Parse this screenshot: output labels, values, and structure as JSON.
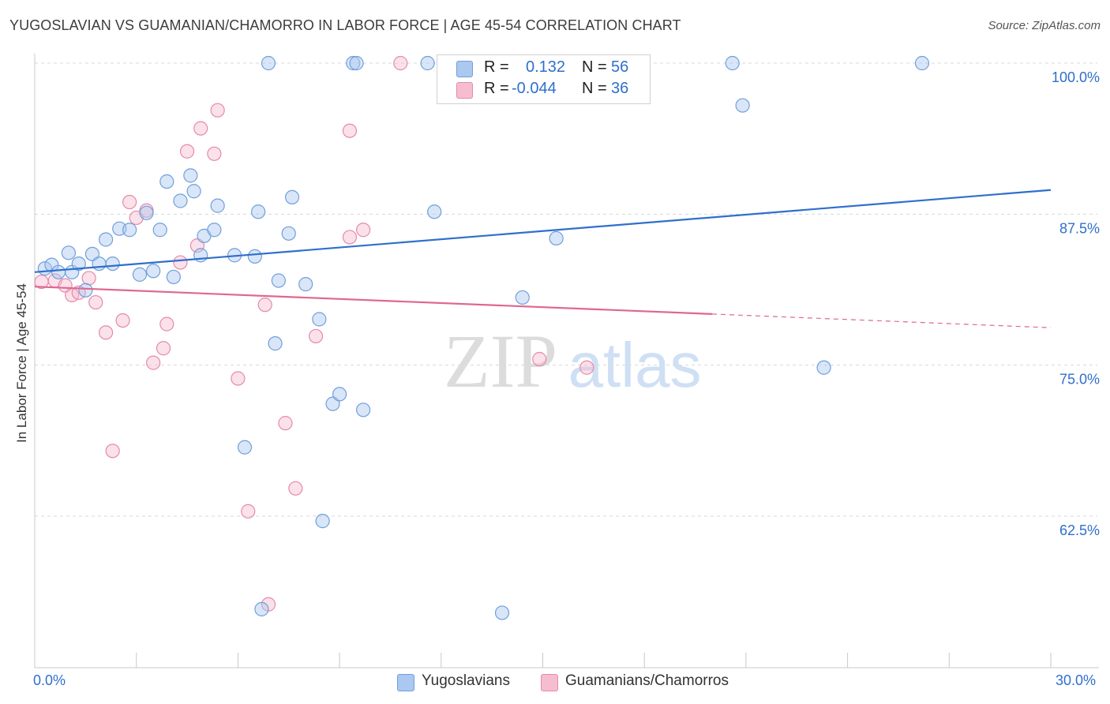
{
  "title": "YUGOSLAVIAN VS GUAMANIAN/CHAMORRO IN LABOR FORCE | AGE 45-54 CORRELATION CHART",
  "source": "Source: ZipAtlas.com",
  "watermark": {
    "zip": "ZIP",
    "atlas": "atlas"
  },
  "legend": {
    "rows": [
      {
        "r_label": "R =",
        "r_value": "0.132",
        "n_label": "N =",
        "n_value": "56"
      },
      {
        "r_label": "R =",
        "r_value": "-0.044",
        "n_label": "N =",
        "n_value": "36"
      }
    ]
  },
  "bottom_legend": {
    "series1": "Yugoslavians",
    "series2": "Guamanians/Chamorros"
  },
  "colors": {
    "blue_fill": "#aac8f0",
    "blue_stroke": "#6f9fdb",
    "blue_line": "#2f6fcc",
    "pink_fill": "#f6bdd0",
    "pink_stroke": "#e58aa8",
    "pink_line": "#e0678f",
    "axis_label": "#2f6fcc",
    "grid": "#d8d8d8"
  },
  "chart_data": {
    "type": "scatter",
    "xlabel": "",
    "ylabel": "In Labor Force | Age 45-54",
    "xlim": [
      0,
      30
    ],
    "ylim": [
      51.5,
      102
    ],
    "x_tick_labels": [
      "0.0%",
      "30.0%"
    ],
    "y_ticks": [
      100,
      87.5,
      75,
      62.5
    ],
    "y_tick_labels": [
      "100.0%",
      "87.5%",
      "75.0%",
      "62.5%"
    ],
    "grid": "horizontal dashed",
    "legend_position": "top-center",
    "series": [
      {
        "name": "Yugoslavians",
        "color": "#6f9fdb",
        "points": [
          [
            0.3,
            83.0
          ],
          [
            0.5,
            83.3
          ],
          [
            0.7,
            82.7
          ],
          [
            1.0,
            84.3
          ],
          [
            1.1,
            82.7
          ],
          [
            1.3,
            83.4
          ],
          [
            1.5,
            81.2
          ],
          [
            1.7,
            84.2
          ],
          [
            1.9,
            83.4
          ],
          [
            2.1,
            85.4
          ],
          [
            2.3,
            83.4
          ],
          [
            2.5,
            86.3
          ],
          [
            2.8,
            86.2
          ],
          [
            3.1,
            82.5
          ],
          [
            3.3,
            87.6
          ],
          [
            3.5,
            82.8
          ],
          [
            3.7,
            86.2
          ],
          [
            3.9,
            90.2
          ],
          [
            4.1,
            82.3
          ],
          [
            4.3,
            88.6
          ],
          [
            4.6,
            90.7
          ],
          [
            4.7,
            89.4
          ],
          [
            4.9,
            84.1
          ],
          [
            5.0,
            85.7
          ],
          [
            5.3,
            86.2
          ],
          [
            5.4,
            88.2
          ],
          [
            5.9,
            84.1
          ],
          [
            6.2,
            68.2
          ],
          [
            6.5,
            84.0
          ],
          [
            6.6,
            87.7
          ],
          [
            6.7,
            54.8
          ],
          [
            6.9,
            100.0
          ],
          [
            7.1,
            76.8
          ],
          [
            7.2,
            82.0
          ],
          [
            7.5,
            85.9
          ],
          [
            7.6,
            88.9
          ],
          [
            8.0,
            81.7
          ],
          [
            8.4,
            78.8
          ],
          [
            8.5,
            62.1
          ],
          [
            8.8,
            71.8
          ],
          [
            9.0,
            72.6
          ],
          [
            9.4,
            100.0
          ],
          [
            9.5,
            100.0
          ],
          [
            9.7,
            71.3
          ],
          [
            11.6,
            100.0
          ],
          [
            11.8,
            87.7
          ],
          [
            13.8,
            54.5
          ],
          [
            14.4,
            80.6
          ],
          [
            15.4,
            85.5
          ],
          [
            20.6,
            100.0
          ],
          [
            20.9,
            96.5
          ],
          [
            23.3,
            74.8
          ],
          [
            26.2,
            100.0
          ]
        ],
        "trend": {
          "x": [
            0,
            30
          ],
          "y": [
            82.7,
            89.5
          ]
        }
      },
      {
        "name": "Guamanians/Chamorros",
        "color": "#e58aa8",
        "points": [
          [
            0.2,
            81.9
          ],
          [
            0.6,
            82.0
          ],
          [
            0.9,
            81.6
          ],
          [
            1.1,
            80.8
          ],
          [
            1.3,
            81.0
          ],
          [
            1.6,
            82.2
          ],
          [
            1.8,
            80.2
          ],
          [
            2.1,
            77.7
          ],
          [
            2.3,
            67.9
          ],
          [
            2.6,
            78.7
          ],
          [
            2.8,
            88.5
          ],
          [
            3.0,
            87.2
          ],
          [
            3.3,
            87.8
          ],
          [
            3.5,
            75.2
          ],
          [
            3.8,
            76.4
          ],
          [
            3.9,
            78.4
          ],
          [
            4.3,
            83.5
          ],
          [
            4.5,
            92.7
          ],
          [
            4.8,
            84.9
          ],
          [
            4.9,
            94.6
          ],
          [
            5.3,
            92.5
          ],
          [
            5.4,
            96.1
          ],
          [
            6.0,
            73.9
          ],
          [
            6.3,
            62.9
          ],
          [
            6.8,
            80.0
          ],
          [
            6.9,
            55.2
          ],
          [
            7.4,
            70.2
          ],
          [
            7.7,
            64.8
          ],
          [
            8.3,
            77.4
          ],
          [
            9.3,
            85.6
          ],
          [
            9.3,
            94.4
          ],
          [
            9.7,
            86.2
          ],
          [
            10.8,
            100.0
          ],
          [
            14.9,
            75.5
          ],
          [
            16.3,
            74.8
          ]
        ],
        "trend": {
          "x": [
            0,
            30
          ],
          "y": [
            81.5,
            78.1
          ],
          "solid_until_x": 20.0
        }
      }
    ]
  }
}
